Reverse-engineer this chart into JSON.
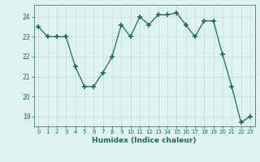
{
  "x": [
    0,
    1,
    2,
    3,
    4,
    5,
    6,
    7,
    8,
    9,
    10,
    11,
    12,
    13,
    14,
    15,
    16,
    17,
    18,
    19,
    20,
    21,
    22,
    23
  ],
  "y": [
    23.5,
    23.0,
    23.0,
    23.0,
    21.5,
    20.5,
    20.5,
    21.2,
    22.0,
    23.6,
    23.0,
    24.0,
    23.6,
    24.1,
    24.1,
    24.2,
    23.6,
    23.0,
    23.8,
    23.8,
    22.1,
    20.5,
    18.7,
    19.0
  ],
  "xlabel": "Humidex (Indice chaleur)",
  "xlim_min": -0.5,
  "xlim_max": 23.5,
  "ylim_min": 18.5,
  "ylim_max": 24.6,
  "yticks": [
    19,
    20,
    21,
    22,
    23,
    24
  ],
  "xticks": [
    0,
    1,
    2,
    3,
    4,
    5,
    6,
    7,
    8,
    9,
    10,
    11,
    12,
    13,
    14,
    15,
    16,
    17,
    18,
    19,
    20,
    21,
    22,
    23
  ],
  "line_color": "#1a6b5a",
  "marker": "+",
  "markersize": 4,
  "markeredgewidth": 1.2,
  "linewidth": 0.9,
  "bg_color": "#dff2f2",
  "grid_color": "#c0dada",
  "tick_color": "#1a6b5a",
  "label_color": "#1a6b5a",
  "xlabel_fontsize": 6.5,
  "xlabel_fontweight": "bold",
  "ytick_fontsize": 5.5,
  "xtick_fontsize": 5.0
}
